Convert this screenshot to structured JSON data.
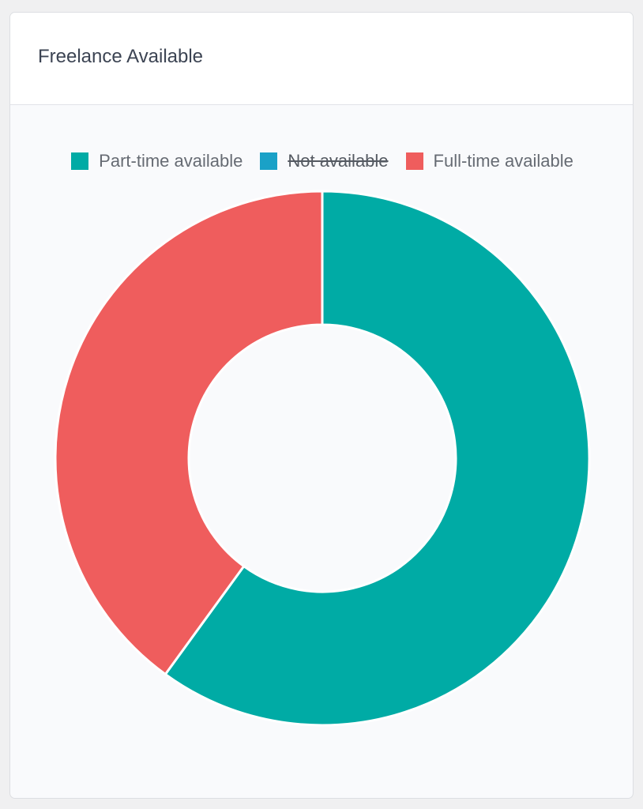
{
  "card": {
    "title": "Freelance Available"
  },
  "chart_data": {
    "type": "pie",
    "variant": "doughnut",
    "legend_position": "top",
    "categories": [
      "Part-time available",
      "Not available",
      "Full-time available"
    ],
    "values": [
      60,
      0,
      40
    ],
    "hidden": [
      false,
      true,
      false
    ],
    "colors": [
      "#00aba5",
      "#1aa1c7",
      "#ef5d5d"
    ],
    "start_angle_deg": -90,
    "cutout_ratio": 0.5
  }
}
